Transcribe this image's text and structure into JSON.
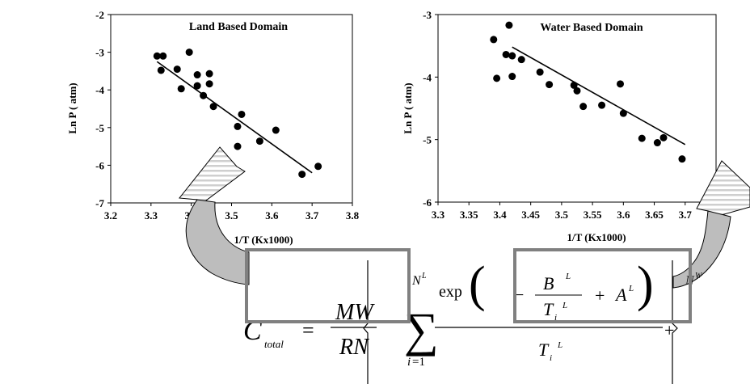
{
  "chart_data": [
    {
      "type": "scatter",
      "title": "Land Based Domain",
      "xlabel": "1/T (Kx1000)",
      "ylabel": "Ln P ( atm)",
      "xlim": [
        3.2,
        3.8
      ],
      "ylim": [
        -7,
        -2
      ],
      "xticks": [
        "3.2",
        "3.3",
        "3.4",
        "3.5",
        "3.6",
        "3.7",
        "3.8"
      ],
      "yticks": [
        "-2",
        "-3",
        "-4",
        "-5",
        "-6",
        "-7"
      ],
      "grid": false,
      "points": [
        [
          3.315,
          -3.1
        ],
        [
          3.33,
          -3.1
        ],
        [
          3.325,
          -3.48
        ],
        [
          3.365,
          -3.45
        ],
        [
          3.375,
          -3.97
        ],
        [
          3.395,
          -3.0
        ],
        [
          3.415,
          -3.6
        ],
        [
          3.415,
          -3.89
        ],
        [
          3.43,
          -4.15
        ],
        [
          3.445,
          -3.57
        ],
        [
          3.445,
          -3.84
        ],
        [
          3.455,
          -4.44
        ],
        [
          3.515,
          -4.97
        ],
        [
          3.525,
          -4.65
        ],
        [
          3.515,
          -5.5
        ],
        [
          3.57,
          -5.36
        ],
        [
          3.61,
          -5.07
        ],
        [
          3.675,
          -6.24
        ],
        [
          3.715,
          -6.03
        ]
      ],
      "trendline": {
        "x": [
          3.315,
          3.7
        ],
        "y": [
          -3.25,
          -6.2
        ]
      }
    },
    {
      "type": "scatter",
      "title": "Water Based Domain",
      "xlabel": "1/T (Kx1000)",
      "ylabel": "Ln P ( atm)",
      "xlim": [
        3.3,
        3.75
      ],
      "ylim": [
        -6,
        -3
      ],
      "xticks": [
        "3.3",
        "3.35",
        "3.4",
        "3.45",
        "3.5",
        "3.55",
        "3.6",
        "3.65",
        "3.7",
        "3.75"
      ],
      "yticks": [
        "-3",
        "-4",
        "-5",
        "-6"
      ],
      "grid": false,
      "points": [
        [
          3.42,
          -3.66
        ],
        [
          3.435,
          -3.72
        ],
        [
          3.39,
          -3.4
        ],
        [
          3.395,
          -4.02
        ],
        [
          3.41,
          -3.64
        ],
        [
          3.415,
          -3.17
        ],
        [
          3.42,
          -3.99
        ],
        [
          3.465,
          -3.92
        ],
        [
          3.48,
          -4.12
        ],
        [
          3.52,
          -4.13
        ],
        [
          3.525,
          -4.22
        ],
        [
          3.535,
          -4.47
        ],
        [
          3.565,
          -4.45
        ],
        [
          3.595,
          -4.11
        ],
        [
          3.6,
          -4.58
        ],
        [
          3.63,
          -4.98
        ],
        [
          3.655,
          -5.05
        ],
        [
          3.665,
          -4.97
        ],
        [
          3.695,
          -5.31
        ]
      ],
      "trendline": {
        "x": [
          3.42,
          3.7
        ],
        "y": [
          -3.52,
          -5.08
        ]
      }
    }
  ],
  "equation": {
    "lhs": "C",
    "lhs_sub": "total",
    "equals": "=",
    "frac_num": "MW",
    "frac_den": "RN",
    "sum_upper_land": "N",
    "sum_upper_land_sup": "L",
    "sum_upper_water": "N",
    "sum_upper_water_sup": "W",
    "sum_lower": "i",
    "sum_lower_eq": "=1",
    "exp": "exp",
    "minus": "−",
    "plus": "+",
    "B": "B",
    "A": "A",
    "T": "T",
    "i": "i",
    "L": "L",
    "W": "W"
  },
  "colors": {
    "frame": "#808080",
    "stripe": "#cfcfcf",
    "arrow_fill": "#bdbdbd"
  }
}
